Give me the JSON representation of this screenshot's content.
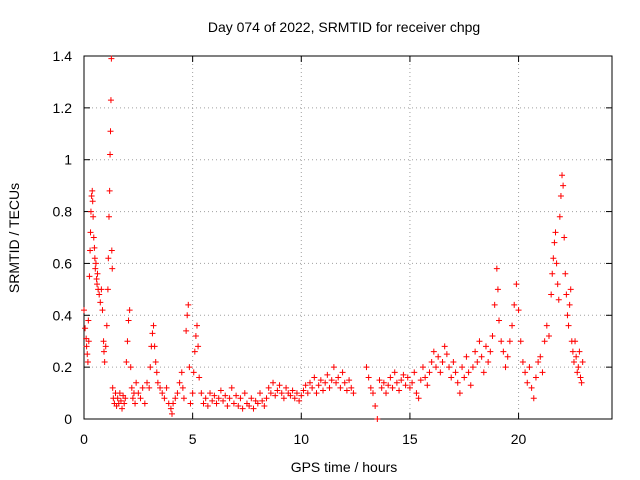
{
  "chart_data": {
    "type": "scatter",
    "title": "Day 074 of 2022, SRMTID for receiver chpg",
    "xlabel": "GPS time / hours",
    "ylabel": "SRMTID / TECUs",
    "xlim": [
      0,
      24.3
    ],
    "ylim": [
      0,
      1.4
    ],
    "x_ticks": [
      0,
      5,
      10,
      15,
      20
    ],
    "x_tick_labels": [
      "0",
      "5",
      "10",
      "15",
      "20"
    ],
    "y_ticks": [
      0,
      0.2,
      0.4,
      0.6,
      0.8,
      1.0,
      1.2,
      1.4
    ],
    "y_tick_labels": [
      "0",
      "0.2",
      "0.4",
      "0.6",
      "0.8",
      "1",
      "1.2",
      "1.4"
    ],
    "grid": true,
    "marker": "plus",
    "color": "#ff0000",
    "series": [
      {
        "name": "SRMTID",
        "points": [
          [
            0.0,
            0.42
          ],
          [
            0.05,
            0.35
          ],
          [
            0.1,
            0.31
          ],
          [
            0.12,
            0.28
          ],
          [
            0.15,
            0.25
          ],
          [
            0.18,
            0.22
          ],
          [
            0.2,
            0.38
          ],
          [
            0.22,
            0.3
          ],
          [
            0.25,
            0.55
          ],
          [
            0.28,
            0.65
          ],
          [
            0.3,
            0.72
          ],
          [
            0.32,
            0.8
          ],
          [
            0.35,
            0.86
          ],
          [
            0.38,
            0.88
          ],
          [
            0.4,
            0.84
          ],
          [
            0.42,
            0.78
          ],
          [
            0.45,
            0.7
          ],
          [
            0.48,
            0.66
          ],
          [
            0.5,
            0.62
          ],
          [
            0.52,
            0.58
          ],
          [
            0.55,
            0.6
          ],
          [
            0.58,
            0.54
          ],
          [
            0.6,
            0.52
          ],
          [
            0.62,
            0.56
          ],
          [
            0.65,
            0.5
          ],
          [
            0.7,
            0.48
          ],
          [
            0.75,
            0.45
          ],
          [
            0.8,
            0.5
          ],
          [
            0.85,
            0.42
          ],
          [
            0.9,
            0.3
          ],
          [
            0.92,
            0.26
          ],
          [
            0.95,
            0.22
          ],
          [
            1.0,
            0.28
          ],
          [
            1.05,
            0.36
          ],
          [
            1.1,
            0.5
          ],
          [
            1.12,
            0.62
          ],
          [
            1.15,
            0.78
          ],
          [
            1.18,
            0.88
          ],
          [
            1.2,
            1.02
          ],
          [
            1.22,
            1.11
          ],
          [
            1.24,
            1.23
          ],
          [
            1.26,
            1.39
          ],
          [
            1.28,
            0.65
          ],
          [
            1.3,
            0.58
          ],
          [
            1.32,
            0.12
          ],
          [
            1.35,
            0.08
          ],
          [
            1.4,
            0.06
          ],
          [
            1.45,
            0.1
          ],
          [
            1.5,
            0.05
          ],
          [
            1.55,
            0.08
          ],
          [
            1.6,
            0.06
          ],
          [
            1.65,
            0.1
          ],
          [
            1.7,
            0.07
          ],
          [
            1.75,
            0.04
          ],
          [
            1.8,
            0.09
          ],
          [
            1.85,
            0.06
          ],
          [
            1.9,
            0.08
          ],
          [
            1.95,
            0.22
          ],
          [
            2.0,
            0.3
          ],
          [
            2.05,
            0.38
          ],
          [
            2.1,
            0.42
          ],
          [
            2.15,
            0.2
          ],
          [
            2.2,
            0.12
          ],
          [
            2.25,
            0.08
          ],
          [
            2.3,
            0.1
          ],
          [
            2.35,
            0.06
          ],
          [
            2.4,
            0.14
          ],
          [
            2.5,
            0.1
          ],
          [
            2.6,
            0.08
          ],
          [
            2.7,
            0.12
          ],
          [
            2.8,
            0.06
          ],
          [
            2.9,
            0.14
          ],
          [
            3.0,
            0.12
          ],
          [
            3.05,
            0.2
          ],
          [
            3.1,
            0.28
          ],
          [
            3.15,
            0.33
          ],
          [
            3.2,
            0.36
          ],
          [
            3.25,
            0.28
          ],
          [
            3.3,
            0.22
          ],
          [
            3.35,
            0.18
          ],
          [
            3.4,
            0.14
          ],
          [
            3.5,
            0.12
          ],
          [
            3.6,
            0.1
          ],
          [
            3.7,
            0.08
          ],
          [
            3.8,
            0.12
          ],
          [
            3.9,
            0.06
          ],
          [
            4.0,
            0.04
          ],
          [
            4.05,
            0.02
          ],
          [
            4.1,
            0.06
          ],
          [
            4.2,
            0.08
          ],
          [
            4.3,
            0.1
          ],
          [
            4.4,
            0.14
          ],
          [
            4.5,
            0.18
          ],
          [
            4.55,
            0.12
          ],
          [
            4.6,
            0.08
          ],
          [
            4.7,
            0.34
          ],
          [
            4.75,
            0.4
          ],
          [
            4.8,
            0.44
          ],
          [
            4.85,
            0.2
          ],
          [
            4.9,
            0.06
          ],
          [
            5.0,
            0.1
          ],
          [
            5.05,
            0.18
          ],
          [
            5.1,
            0.26
          ],
          [
            5.15,
            0.32
          ],
          [
            5.2,
            0.36
          ],
          [
            5.25,
            0.28
          ],
          [
            5.3,
            0.16
          ],
          [
            5.4,
            0.1
          ],
          [
            5.5,
            0.06
          ],
          [
            5.6,
            0.08
          ],
          [
            5.7,
            0.05
          ],
          [
            5.8,
            0.1
          ],
          [
            5.9,
            0.07
          ],
          [
            6.0,
            0.09
          ],
          [
            6.1,
            0.06
          ],
          [
            6.2,
            0.08
          ],
          [
            6.3,
            0.11
          ],
          [
            6.4,
            0.07
          ],
          [
            6.5,
            0.09
          ],
          [
            6.6,
            0.05
          ],
          [
            6.7,
            0.08
          ],
          [
            6.8,
            0.12
          ],
          [
            6.9,
            0.06
          ],
          [
            7.0,
            0.09
          ],
          [
            7.1,
            0.05
          ],
          [
            7.2,
            0.08
          ],
          [
            7.3,
            0.04
          ],
          [
            7.4,
            0.1
          ],
          [
            7.5,
            0.06
          ],
          [
            7.6,
            0.05
          ],
          [
            7.7,
            0.08
          ],
          [
            7.8,
            0.04
          ],
          [
            7.9,
            0.07
          ],
          [
            8.0,
            0.06
          ],
          [
            8.1,
            0.1
          ],
          [
            8.2,
            0.07
          ],
          [
            8.3,
            0.05
          ],
          [
            8.4,
            0.08
          ],
          [
            8.5,
            0.12
          ],
          [
            8.6,
            0.1
          ],
          [
            8.7,
            0.14
          ],
          [
            8.8,
            0.09
          ],
          [
            8.9,
            0.11
          ],
          [
            9.0,
            0.13
          ],
          [
            9.1,
            0.1
          ],
          [
            9.2,
            0.08
          ],
          [
            9.3,
            0.12
          ],
          [
            9.4,
            0.1
          ],
          [
            9.5,
            0.09
          ],
          [
            9.6,
            0.11
          ],
          [
            9.7,
            0.08
          ],
          [
            9.8,
            0.1
          ],
          [
            9.9,
            0.07
          ],
          [
            10.0,
            0.09
          ],
          [
            10.1,
            0.11
          ],
          [
            10.2,
            0.13
          ],
          [
            10.3,
            0.1
          ],
          [
            10.4,
            0.14
          ],
          [
            10.5,
            0.12
          ],
          [
            10.6,
            0.16
          ],
          [
            10.7,
            0.1
          ],
          [
            10.8,
            0.13
          ],
          [
            10.9,
            0.15
          ],
          [
            11.0,
            0.11
          ],
          [
            11.1,
            0.14
          ],
          [
            11.2,
            0.17
          ],
          [
            11.3,
            0.12
          ],
          [
            11.4,
            0.15
          ],
          [
            11.5,
            0.2
          ],
          [
            11.6,
            0.14
          ],
          [
            11.7,
            0.16
          ],
          [
            11.8,
            0.12
          ],
          [
            11.9,
            0.18
          ],
          [
            12.0,
            0.14
          ],
          [
            12.1,
            0.11
          ],
          [
            12.2,
            0.15
          ],
          [
            12.3,
            0.12
          ],
          [
            12.4,
            0.1
          ],
          [
            13.0,
            0.2
          ],
          [
            13.1,
            0.16
          ],
          [
            13.2,
            0.12
          ],
          [
            13.3,
            0.1
          ],
          [
            13.4,
            0.05
          ],
          [
            13.5,
            0.0
          ],
          [
            13.6,
            0.15
          ],
          [
            13.7,
            0.12
          ],
          [
            13.8,
            0.14
          ],
          [
            13.9,
            0.1
          ],
          [
            14.0,
            0.13
          ],
          [
            14.1,
            0.16
          ],
          [
            14.2,
            0.12
          ],
          [
            14.3,
            0.18
          ],
          [
            14.4,
            0.14
          ],
          [
            14.5,
            0.11
          ],
          [
            14.6,
            0.15
          ],
          [
            14.7,
            0.17
          ],
          [
            14.8,
            0.13
          ],
          [
            14.9,
            0.16
          ],
          [
            15.0,
            0.12
          ],
          [
            15.1,
            0.14
          ],
          [
            15.2,
            0.18
          ],
          [
            15.3,
            0.1
          ],
          [
            15.4,
            0.08
          ],
          [
            15.5,
            0.15
          ],
          [
            15.6,
            0.2
          ],
          [
            15.7,
            0.16
          ],
          [
            15.8,
            0.13
          ],
          [
            15.9,
            0.18
          ],
          [
            16.0,
            0.22
          ],
          [
            16.1,
            0.26
          ],
          [
            16.2,
            0.2
          ],
          [
            16.3,
            0.24
          ],
          [
            16.4,
            0.18
          ],
          [
            16.5,
            0.22
          ],
          [
            16.6,
            0.28
          ],
          [
            16.7,
            0.25
          ],
          [
            16.8,
            0.2
          ],
          [
            16.9,
            0.16
          ],
          [
            17.0,
            0.22
          ],
          [
            17.1,
            0.18
          ],
          [
            17.2,
            0.14
          ],
          [
            17.3,
            0.1
          ],
          [
            17.4,
            0.2
          ],
          [
            17.5,
            0.16
          ],
          [
            17.6,
            0.24
          ],
          [
            17.7,
            0.18
          ],
          [
            17.8,
            0.13
          ],
          [
            17.9,
            0.2
          ],
          [
            18.0,
            0.26
          ],
          [
            18.1,
            0.22
          ],
          [
            18.2,
            0.3
          ],
          [
            18.3,
            0.24
          ],
          [
            18.4,
            0.18
          ],
          [
            18.5,
            0.28
          ],
          [
            18.6,
            0.22
          ],
          [
            18.7,
            0.26
          ],
          [
            18.8,
            0.32
          ],
          [
            18.9,
            0.44
          ],
          [
            19.0,
            0.58
          ],
          [
            19.05,
            0.5
          ],
          [
            19.1,
            0.38
          ],
          [
            19.2,
            0.3
          ],
          [
            19.3,
            0.26
          ],
          [
            19.4,
            0.2
          ],
          [
            19.5,
            0.24
          ],
          [
            19.6,
            0.3
          ],
          [
            19.7,
            0.36
          ],
          [
            19.8,
            0.44
          ],
          [
            19.9,
            0.52
          ],
          [
            20.0,
            0.42
          ],
          [
            20.1,
            0.3
          ],
          [
            20.2,
            0.22
          ],
          [
            20.3,
            0.18
          ],
          [
            20.4,
            0.14
          ],
          [
            20.5,
            0.2
          ],
          [
            20.6,
            0.12
          ],
          [
            20.7,
            0.08
          ],
          [
            20.8,
            0.16
          ],
          [
            20.9,
            0.22
          ],
          [
            21.0,
            0.24
          ],
          [
            21.1,
            0.18
          ],
          [
            21.2,
            0.3
          ],
          [
            21.3,
            0.36
          ],
          [
            21.4,
            0.32
          ],
          [
            21.5,
            0.48
          ],
          [
            21.55,
            0.56
          ],
          [
            21.6,
            0.62
          ],
          [
            21.65,
            0.68
          ],
          [
            21.7,
            0.72
          ],
          [
            21.75,
            0.6
          ],
          [
            21.8,
            0.52
          ],
          [
            21.85,
            0.46
          ],
          [
            21.9,
            0.78
          ],
          [
            21.95,
            0.86
          ],
          [
            22.0,
            0.94
          ],
          [
            22.05,
            0.9
          ],
          [
            22.1,
            0.7
          ],
          [
            22.15,
            0.56
          ],
          [
            22.2,
            0.48
          ],
          [
            22.25,
            0.4
          ],
          [
            22.3,
            0.36
          ],
          [
            22.35,
            0.44
          ],
          [
            22.4,
            0.5
          ],
          [
            22.45,
            0.3
          ],
          [
            22.5,
            0.26
          ],
          [
            22.55,
            0.22
          ],
          [
            22.6,
            0.3
          ],
          [
            22.65,
            0.24
          ],
          [
            22.7,
            0.18
          ],
          [
            22.75,
            0.2
          ],
          [
            22.8,
            0.26
          ],
          [
            22.85,
            0.16
          ],
          [
            22.9,
            0.14
          ],
          [
            22.95,
            0.22
          ]
        ]
      }
    ]
  }
}
